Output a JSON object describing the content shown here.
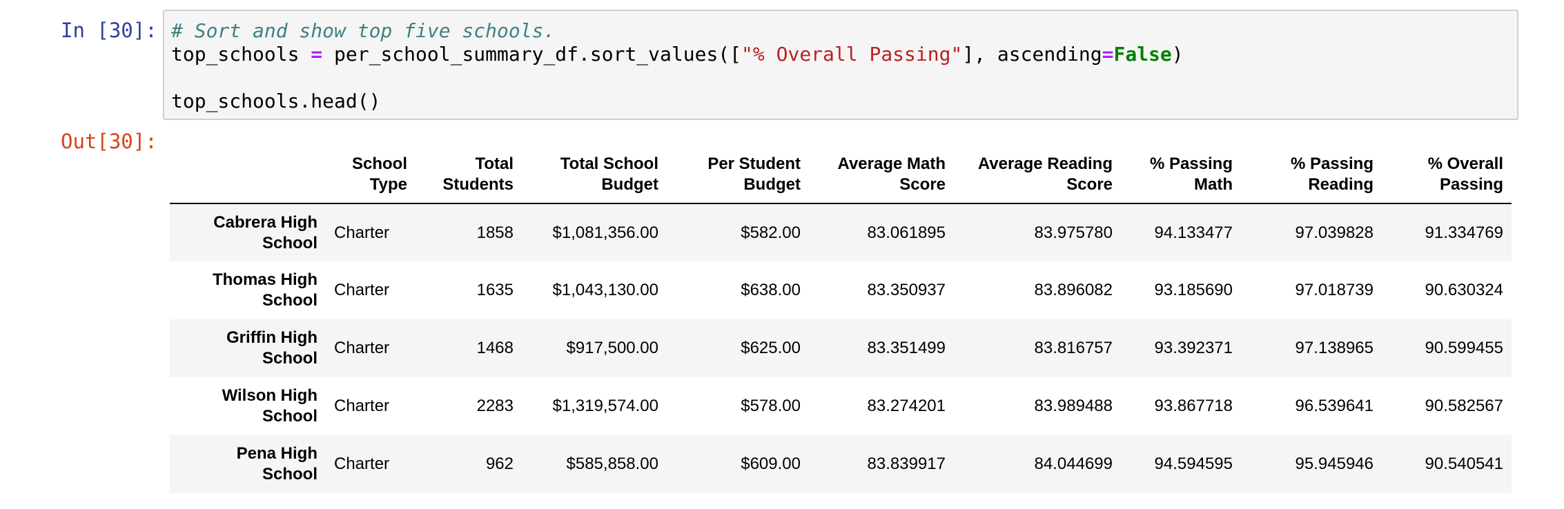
{
  "input_prompt": "In [30]:",
  "output_prompt": "Out[30]:",
  "code": {
    "comment": "# Sort and show top five schools.",
    "line2_var": "top_schools ",
    "line2_eq": "=",
    "line2_call": " per_school_summary_df.sort_values([",
    "line2_str": "\"% Overall Passing\"",
    "line2_mid": "], ascending",
    "line2_eq2": "=",
    "line2_kw": "False",
    "line2_end": ")",
    "line4": "top_schools.head()"
  },
  "table": {
    "columns": [
      "School Type",
      "Total Students",
      "Total School Budget",
      "Per Student Budget",
      "Average Math Score",
      "Average Reading Score",
      "% Passing Math",
      "% Passing Reading",
      "% Overall Passing"
    ],
    "rows": [
      {
        "school": "Cabrera High School",
        "type": "Charter",
        "students": "1858",
        "budget": "$1,081,356.00",
        "per_student": "$582.00",
        "avg_math": "83.061895",
        "avg_reading": "83.975780",
        "pct_math": "94.133477",
        "pct_reading": "97.039828",
        "pct_overall": "91.334769"
      },
      {
        "school": "Thomas High School",
        "type": "Charter",
        "students": "1635",
        "budget": "$1,043,130.00",
        "per_student": "$638.00",
        "avg_math": "83.350937",
        "avg_reading": "83.896082",
        "pct_math": "93.185690",
        "pct_reading": "97.018739",
        "pct_overall": "90.630324"
      },
      {
        "school": "Griffin High School",
        "type": "Charter",
        "students": "1468",
        "budget": "$917,500.00",
        "per_student": "$625.00",
        "avg_math": "83.351499",
        "avg_reading": "83.816757",
        "pct_math": "93.392371",
        "pct_reading": "97.138965",
        "pct_overall": "90.599455"
      },
      {
        "school": "Wilson High School",
        "type": "Charter",
        "students": "2283",
        "budget": "$1,319,574.00",
        "per_student": "$578.00",
        "avg_math": "83.274201",
        "avg_reading": "83.989488",
        "pct_math": "93.867718",
        "pct_reading": "96.539641",
        "pct_overall": "90.582567"
      },
      {
        "school": "Pena High School",
        "type": "Charter",
        "students": "962",
        "budget": "$585,858.00",
        "per_student": "$609.00",
        "avg_math": "83.839917",
        "avg_reading": "84.044699",
        "pct_math": "94.594595",
        "pct_reading": "95.945946",
        "pct_overall": "90.540541"
      }
    ]
  }
}
